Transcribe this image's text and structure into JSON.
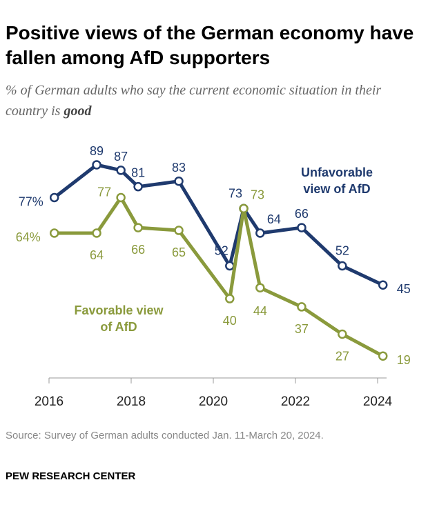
{
  "title": "Positive views of the German economy have fallen among AfD supporters",
  "subtitle_pre": "% of German adults who say the current economic situation in their country is ",
  "subtitle_em": "good",
  "source": "Source: Survey of German adults conducted Jan. 11-March 20, 2024.",
  "org": "PEW RESEARCH CENTER",
  "chart_data": {
    "type": "line",
    "x_ticks": [
      "2016",
      "2018",
      "2020",
      "2022",
      "2024"
    ],
    "x": [
      2016.13,
      2017.16,
      2017.75,
      2018.17,
      2019.16,
      2020.4,
      2020.74,
      2021.14,
      2022.15,
      2023.14,
      2024.13
    ],
    "series": [
      {
        "name": "Unfavorable view of AfD",
        "color": "#1f3a6e",
        "values": [
          77,
          89,
          87,
          81,
          83,
          52,
          73,
          64,
          66,
          52,
          45
        ],
        "labels": [
          "77%",
          "89",
          "87",
          "81",
          "83",
          "52",
          "73",
          "64",
          "66",
          "52",
          "45"
        ]
      },
      {
        "name": "Favorable view of AfD",
        "color": "#8a9a3c",
        "values": [
          64,
          64,
          77,
          66,
          65,
          40,
          73,
          44,
          37,
          27,
          19
        ],
        "labels": [
          "64%",
          "64",
          "77",
          "66",
          "65",
          "40",
          "73",
          "44",
          "37",
          "27",
          "19"
        ]
      }
    ],
    "legend_placement": "inline labels"
  }
}
